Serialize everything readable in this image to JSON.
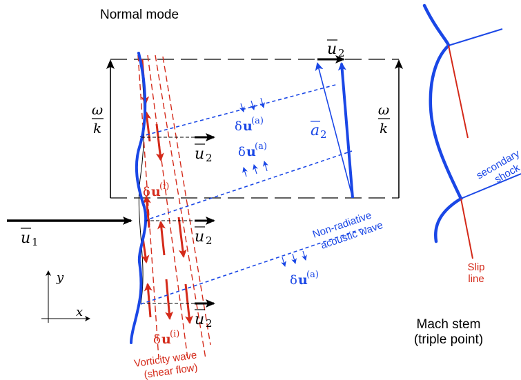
{
  "title": "Normal mode",
  "colors": {
    "shock": "#1a47e6",
    "vorticity": "#d42a1a",
    "acoustic": "#1a47e6",
    "frame": "#000000"
  },
  "labels": {
    "omega": "ω",
    "k": "k",
    "u1": "u",
    "u1_sub": "1",
    "u2": "u",
    "u2_sub": "2",
    "a2": "a",
    "a2_sub": "2",
    "du_acoustic": "δ",
    "du_acoustic_bold": "u",
    "du_acoustic_sup": "(a)",
    "du_vort": "δ",
    "du_vort_bold": "u",
    "du_vort_sup": "(i)",
    "axis_x": "x",
    "axis_y": "y",
    "nonradiative_1": "Non-radiative",
    "nonradiative_2": "acoustic wave",
    "vorticity_1": "Vorticity wave",
    "vorticity_2": "(shear flow)",
    "secondary_1": "secondary",
    "secondary_2": "shock",
    "slip_1": "Slip",
    "slip_2": "line",
    "mach_1": "Mach stem",
    "mach_2": "(triple point)"
  }
}
